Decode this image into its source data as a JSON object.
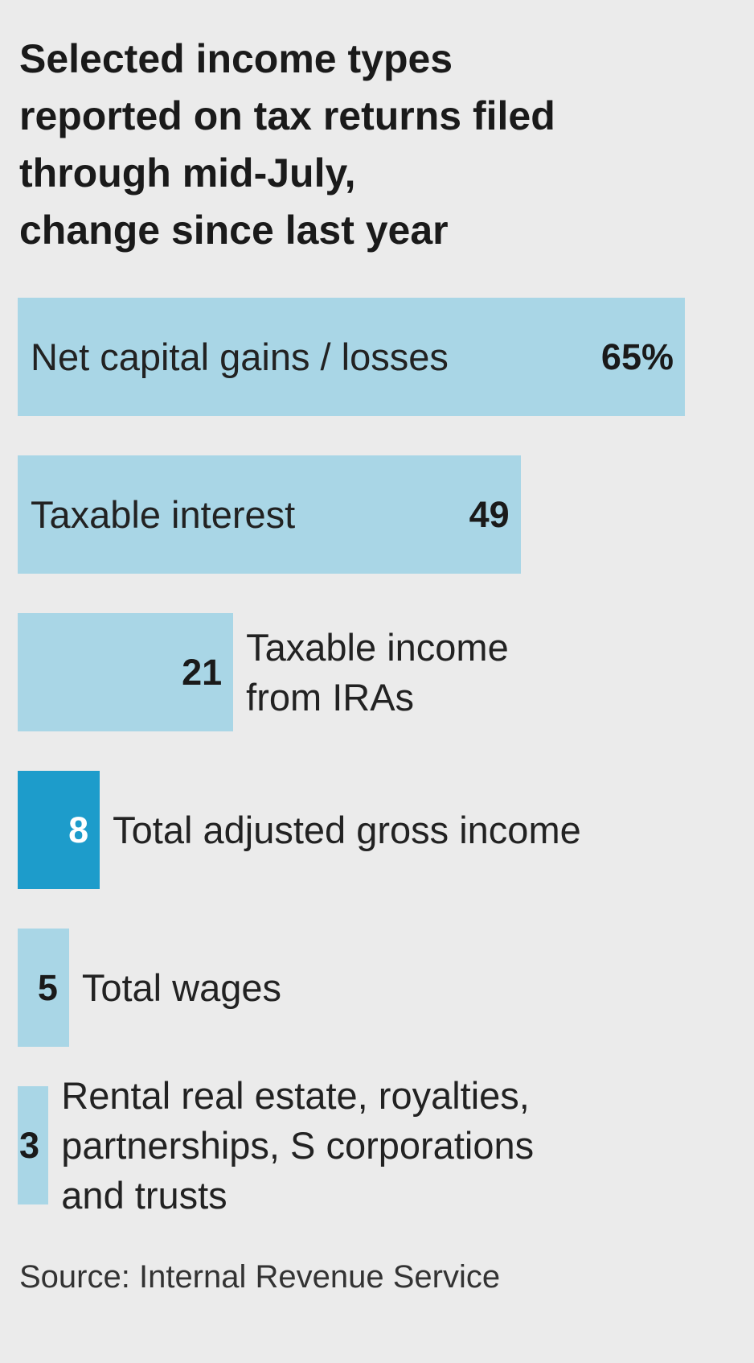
{
  "chart_data": {
    "type": "bar",
    "title": "Selected income types\nreported on tax returns filed\nthrough mid-July,\nchange since last year",
    "categories": [
      "Net capital gains / losses",
      "Taxable interest",
      "Taxable income\nfrom IRAs",
      "Total adjusted gross income",
      "Total wages",
      "Rental real estate, royalties,\npartnerships, S corporations\nand trusts"
    ],
    "values": [
      65,
      49,
      21,
      8,
      5,
      3
    ],
    "value_labels": [
      "65%",
      "49",
      "21",
      "8",
      "5",
      "3"
    ],
    "colors": [
      "#a9d6e6",
      "#a9d6e6",
      "#a9d6e6",
      "#1d9ccb",
      "#a9d6e6",
      "#a9d6e6"
    ],
    "source": "Source: Internal Revenue Service"
  }
}
